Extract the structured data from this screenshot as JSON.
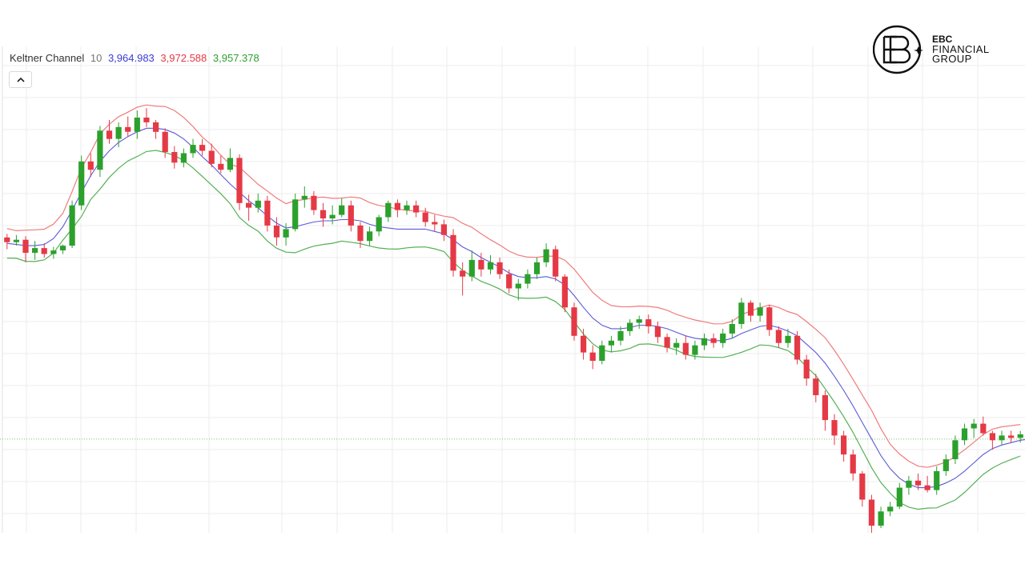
{
  "indicator": {
    "name": "Keltner Channel",
    "period": "10",
    "middle_value": "3,964.983",
    "upper_value": "3,972.588",
    "lower_value": "3,957.378"
  },
  "logo": {
    "line1": "EBC",
    "line2": "FINANCIAL",
    "line3": "GROUP"
  },
  "colors": {
    "up": "#2ca02c",
    "down": "#e53946",
    "middle": "#5b5bd9",
    "upper": "#f07b7b",
    "lower": "#55b055",
    "grid": "#ececec",
    "reference": "#7fc07f"
  },
  "chart_data": {
    "type": "candlestick",
    "title": "",
    "ylim": [
      3880,
      4290
    ],
    "reference_line": 3959,
    "candles": [
      [
        4129,
        4132,
        4119,
        4125
      ],
      [
        4125,
        4131,
        4122,
        4127
      ],
      [
        4127,
        4130,
        4108,
        4116
      ],
      [
        4116,
        4126,
        4110,
        4120
      ],
      [
        4120,
        4124,
        4112,
        4115
      ],
      [
        4115,
        4121,
        4111,
        4118
      ],
      [
        4118,
        4123,
        4115,
        4122
      ],
      [
        4122,
        4160,
        4120,
        4156
      ],
      [
        4156,
        4198,
        4152,
        4193
      ],
      [
        4193,
        4200,
        4180,
        4186
      ],
      [
        4186,
        4223,
        4180,
        4219
      ],
      [
        4219,
        4228,
        4208,
        4212
      ],
      [
        4212,
        4226,
        4205,
        4222
      ],
      [
        4222,
        4231,
        4214,
        4218
      ],
      [
        4218,
        4236,
        4212,
        4230
      ],
      [
        4230,
        4238,
        4222,
        4226
      ],
      [
        4226,
        4228,
        4212,
        4218
      ],
      [
        4218,
        4221,
        4196,
        4201
      ],
      [
        4201,
        4206,
        4187,
        4192
      ],
      [
        4192,
        4204,
        4188,
        4200
      ],
      [
        4200,
        4212,
        4196,
        4207
      ],
      [
        4207,
        4212,
        4198,
        4202
      ],
      [
        4202,
        4208,
        4188,
        4191
      ],
      [
        4191,
        4198,
        4183,
        4186
      ],
      [
        4186,
        4204,
        4184,
        4196
      ],
      [
        4196,
        4199,
        4152,
        4158
      ],
      [
        4158,
        4165,
        4143,
        4154
      ],
      [
        4154,
        4166,
        4150,
        4160
      ],
      [
        4160,
        4164,
        4134,
        4139
      ],
      [
        4139,
        4146,
        4122,
        4129
      ],
      [
        4129,
        4141,
        4122,
        4136
      ],
      [
        4136,
        4166,
        4134,
        4161
      ],
      [
        4161,
        4172,
        4154,
        4164
      ],
      [
        4164,
        4168,
        4148,
        4152
      ],
      [
        4152,
        4158,
        4138,
        4145
      ],
      [
        4145,
        4156,
        4140,
        4148
      ],
      [
        4148,
        4162,
        4146,
        4156
      ],
      [
        4156,
        4160,
        4134,
        4139
      ],
      [
        4139,
        4142,
        4120,
        4126
      ],
      [
        4126,
        4138,
        4122,
        4134
      ],
      [
        4134,
        4148,
        4130,
        4146
      ],
      [
        4146,
        4160,
        4142,
        4158
      ],
      [
        4158,
        4161,
        4146,
        4152
      ],
      [
        4152,
        4160,
        4148,
        4156
      ],
      [
        4156,
        4160,
        4146,
        4150
      ],
      [
        4150,
        4154,
        4138,
        4142
      ],
      [
        4142,
        4148,
        4134,
        4140
      ],
      [
        4140,
        4144,
        4126,
        4131
      ],
      [
        4131,
        4136,
        4096,
        4101
      ],
      [
        4101,
        4108,
        4080,
        4096
      ],
      [
        4096,
        4118,
        4092,
        4110
      ],
      [
        4110,
        4116,
        4096,
        4102
      ],
      [
        4102,
        4114,
        4098,
        4108
      ],
      [
        4108,
        4112,
        4094,
        4098
      ],
      [
        4098,
        4102,
        4082,
        4086
      ],
      [
        4086,
        4094,
        4076,
        4090
      ],
      [
        4090,
        4102,
        4086,
        4098
      ],
      [
        4098,
        4112,
        4094,
        4108
      ],
      [
        4108,
        4124,
        4104,
        4119
      ],
      [
        4119,
        4122,
        4092,
        4096
      ],
      [
        4096,
        4098,
        4066,
        4070
      ],
      [
        4070,
        4074,
        4042,
        4046
      ],
      [
        4046,
        4052,
        4026,
        4032
      ],
      [
        4032,
        4038,
        4018,
        4025
      ],
      [
        4025,
        4042,
        4022,
        4038
      ],
      [
        4038,
        4046,
        4032,
        4042
      ],
      [
        4042,
        4054,
        4038,
        4050
      ],
      [
        4050,
        4060,
        4046,
        4057
      ],
      [
        4057,
        4063,
        4052,
        4060
      ],
      [
        4060,
        4064,
        4048,
        4054
      ],
      [
        4054,
        4058,
        4040,
        4045
      ],
      [
        4045,
        4048,
        4032,
        4036
      ],
      [
        4036,
        4044,
        4030,
        4040
      ],
      [
        4040,
        4046,
        4026,
        4030
      ],
      [
        4030,
        4042,
        4026,
        4038
      ],
      [
        4038,
        4048,
        4034,
        4044
      ],
      [
        4044,
        4048,
        4036,
        4040
      ],
      [
        4040,
        4052,
        4036,
        4048
      ],
      [
        4048,
        4060,
        4044,
        4056
      ],
      [
        4056,
        4078,
        4052,
        4074
      ],
      [
        4074,
        4076,
        4058,
        4063
      ],
      [
        4063,
        4074,
        4058,
        4070
      ],
      [
        4070,
        4072,
        4046,
        4051
      ],
      [
        4051,
        4054,
        4036,
        4040
      ],
      [
        4040,
        4052,
        4036,
        4046
      ],
      [
        4046,
        4050,
        4022,
        4026
      ],
      [
        4026,
        4030,
        4004,
        4010
      ],
      [
        4010,
        4014,
        3990,
        3996
      ],
      [
        3996,
        4000,
        3966,
        3975
      ],
      [
        3975,
        3980,
        3954,
        3962
      ],
      [
        3962,
        3966,
        3940,
        3946
      ],
      [
        3946,
        3950,
        3924,
        3930
      ],
      [
        3930,
        3932,
        3902,
        3908
      ],
      [
        3908,
        3912,
        3880,
        3886
      ],
      [
        3886,
        3902,
        3884,
        3898
      ],
      [
        3898,
        3906,
        3894,
        3902
      ],
      [
        3902,
        3922,
        3900,
        3918
      ],
      [
        3918,
        3928,
        3912,
        3924
      ],
      [
        3924,
        3930,
        3916,
        3920
      ],
      [
        3920,
        3928,
        3914,
        3916
      ],
      [
        3916,
        3936,
        3912,
        3932
      ],
      [
        3932,
        3946,
        3928,
        3942
      ],
      [
        3942,
        3962,
        3938,
        3958
      ],
      [
        3958,
        3972,
        3954,
        3968
      ],
      [
        3968,
        3976,
        3960,
        3972
      ],
      [
        3972,
        3978,
        3962,
        3964
      ],
      [
        3964,
        3966,
        3950,
        3958
      ],
      [
        3958,
        3966,
        3954,
        3962
      ],
      [
        3962,
        3966,
        3956,
        3960
      ],
      [
        3960,
        3966,
        3956,
        3963
      ]
    ],
    "ema_middle": [
      4124,
      4123,
      4122,
      4122,
      4123,
      4128,
      4138,
      4152,
      4167,
      4181,
      4193,
      4202,
      4209,
      4214,
      4218,
      4221,
      4221,
      4220,
      4217,
      4212,
      4205,
      4197,
      4190,
      4182,
      4174,
      4167,
      4160,
      4154,
      4147,
      4141,
      4137,
      4138,
      4140,
      4142,
      4143,
      4143,
      4144,
      4144,
      4143,
      4140,
      4138,
      4137,
      4136,
      4136,
      4136,
      4136,
      4134,
      4132,
      4127,
      4121,
      4117,
      4112,
      4108,
      4104,
      4099,
      4096,
      4095,
      4095,
      4096,
      4094,
      4089,
      4080,
      4070,
      4061,
      4055,
      4052,
      4052,
      4053,
      4055,
      4055,
      4054,
      4052,
      4049,
      4046,
      4044,
      4043,
      4042,
      4042,
      4044,
      4048,
      4051,
      4054,
      4055,
      4053,
      4050,
      4046,
      4039,
      4032,
      4023,
      4012,
      4000,
      3987,
      3973,
      3959,
      3945,
      3934,
      3926,
      3921,
      3918,
      3918,
      3919,
      3922,
      3926,
      3932,
      3939,
      3946,
      3951,
      3954,
      3956,
      3958,
      3959,
      3960
    ]
  }
}
